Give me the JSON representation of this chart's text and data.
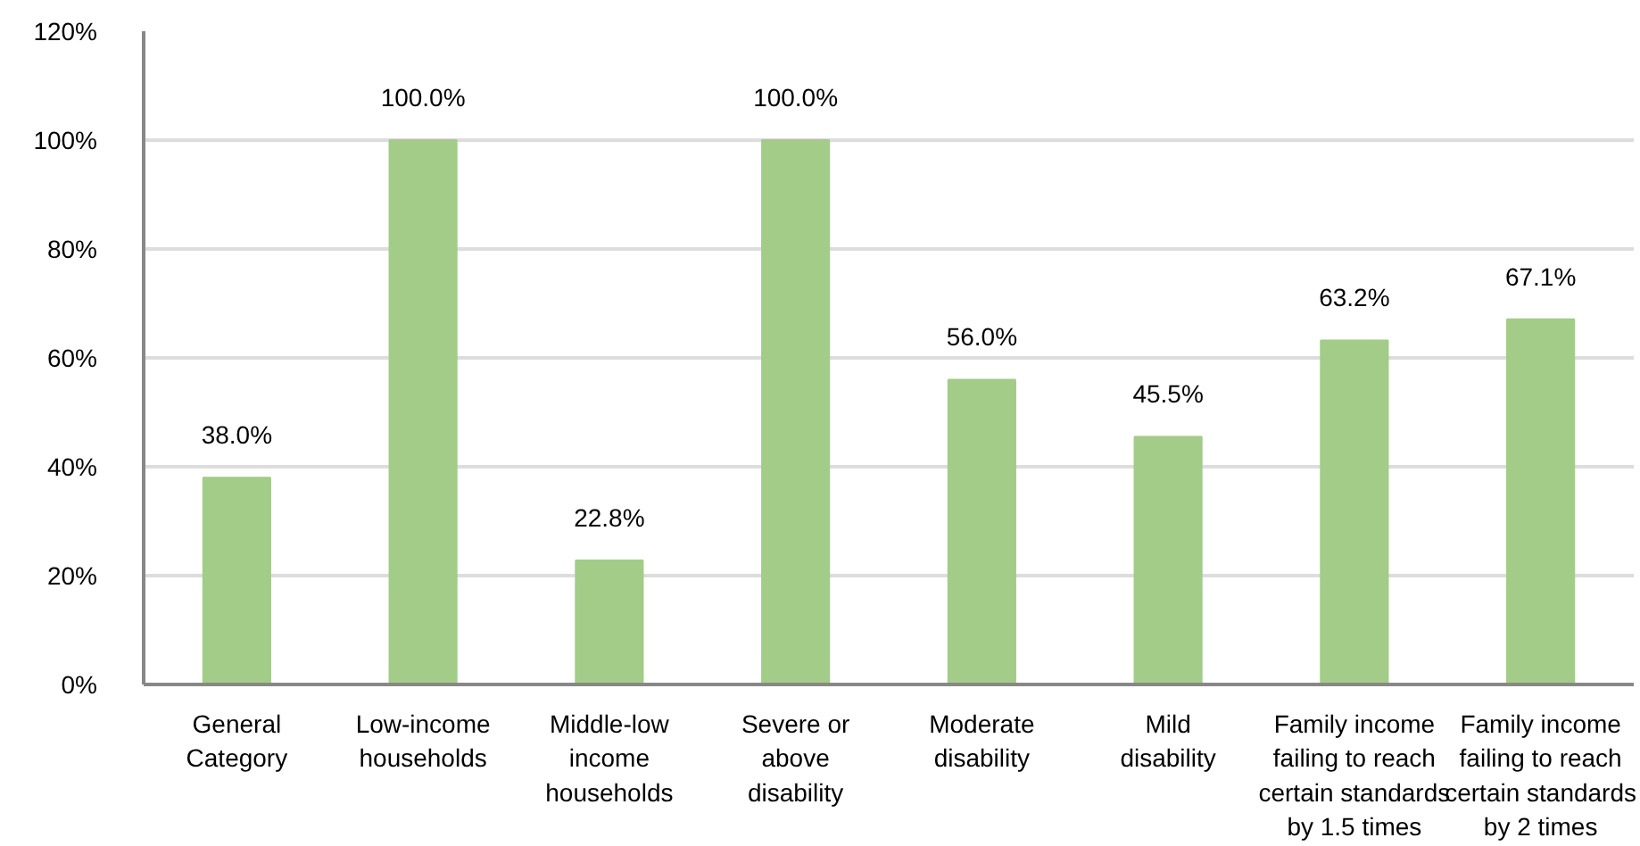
{
  "chart_data": {
    "type": "bar",
    "categories": [
      "General\nCategory",
      "Low-income\nhouseholds",
      "Middle-low\nincome\nhouseholds",
      "Severe or\nabove\ndisability",
      "Moderate\ndisability",
      "Mild\ndisability",
      "Family income\nfailing to reach\ncertain standards\nby 1.5 times",
      "Family income\nfailing to reach\ncertain standards\nby 2 times"
    ],
    "values": [
      38.0,
      100.0,
      22.8,
      100.0,
      56.0,
      45.5,
      63.2,
      67.1
    ],
    "value_labels": [
      "38.0%",
      "100.0%",
      "22.8%",
      "100.0%",
      "56.0%",
      "45.5%",
      "63.2%",
      "67.1%"
    ],
    "color": "#a2cc88",
    "ylim": [
      0,
      120
    ],
    "yticks": [
      {
        "value": 0,
        "label": "0%"
      },
      {
        "value": 20,
        "label": "20%"
      },
      {
        "value": 40,
        "label": "40%"
      },
      {
        "value": 60,
        "label": "60%"
      },
      {
        "value": 80,
        "label": "80%"
      },
      {
        "value": 100,
        "label": "100%"
      },
      {
        "value": 120,
        "label": "120%"
      }
    ],
    "grid": "y"
  }
}
